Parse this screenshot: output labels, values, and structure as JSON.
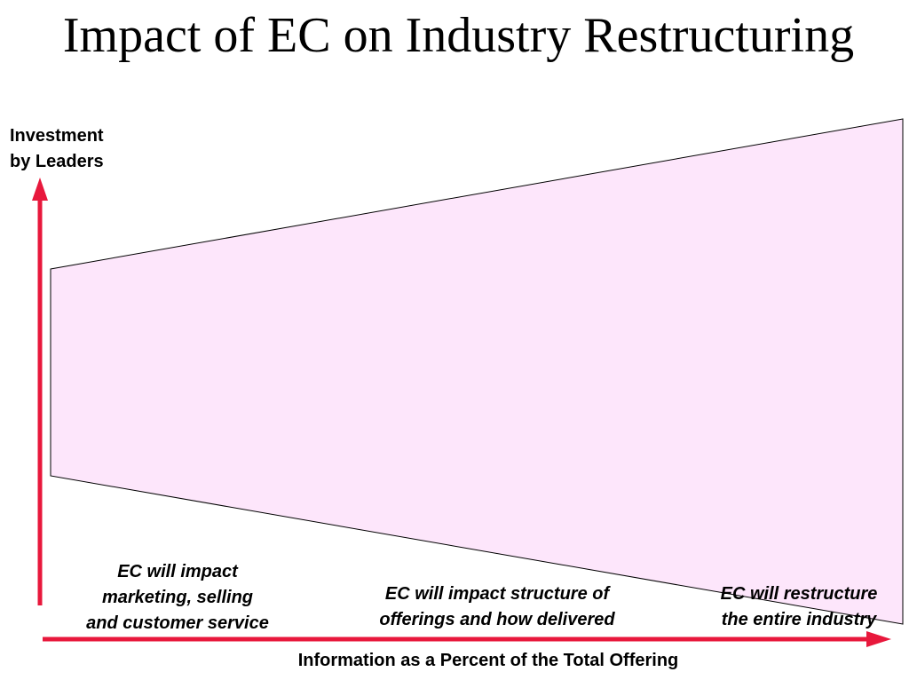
{
  "title": "Impact of EC on Industry Restructuring",
  "y_axis": {
    "label_line1": "Investment",
    "label_line2": "by Leaders"
  },
  "x_axis": {
    "label": "Information as a Percent of the Total Offering"
  },
  "stages": [
    {
      "line1": "EC will impact",
      "line2": "marketing, selling",
      "line3": "and customer service"
    },
    {
      "line1": "EC will impact structure of",
      "line2": "offerings and how delivered"
    },
    {
      "line1": "EC will restructure",
      "line2": "the entire industry"
    }
  ],
  "colors": {
    "arrow": "#e8183c",
    "shape_fill": "#fde6fb",
    "shape_stroke": "#000000"
  }
}
